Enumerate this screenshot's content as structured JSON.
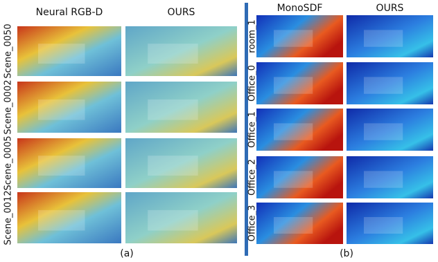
{
  "panel_a": {
    "columns": [
      "Neural RGB-D",
      "OURS"
    ],
    "rows": [
      "Scene_0050",
      "Scene_0002",
      "Scene_0005",
      "Scene_0012"
    ],
    "caption": "(a)"
  },
  "panel_b": {
    "columns": [
      "MonoSDF",
      "OURS"
    ],
    "rows": [
      "room_1",
      "Office_0",
      "Office_1",
      "Office_2",
      "Office_3"
    ],
    "caption": "(b)"
  }
}
